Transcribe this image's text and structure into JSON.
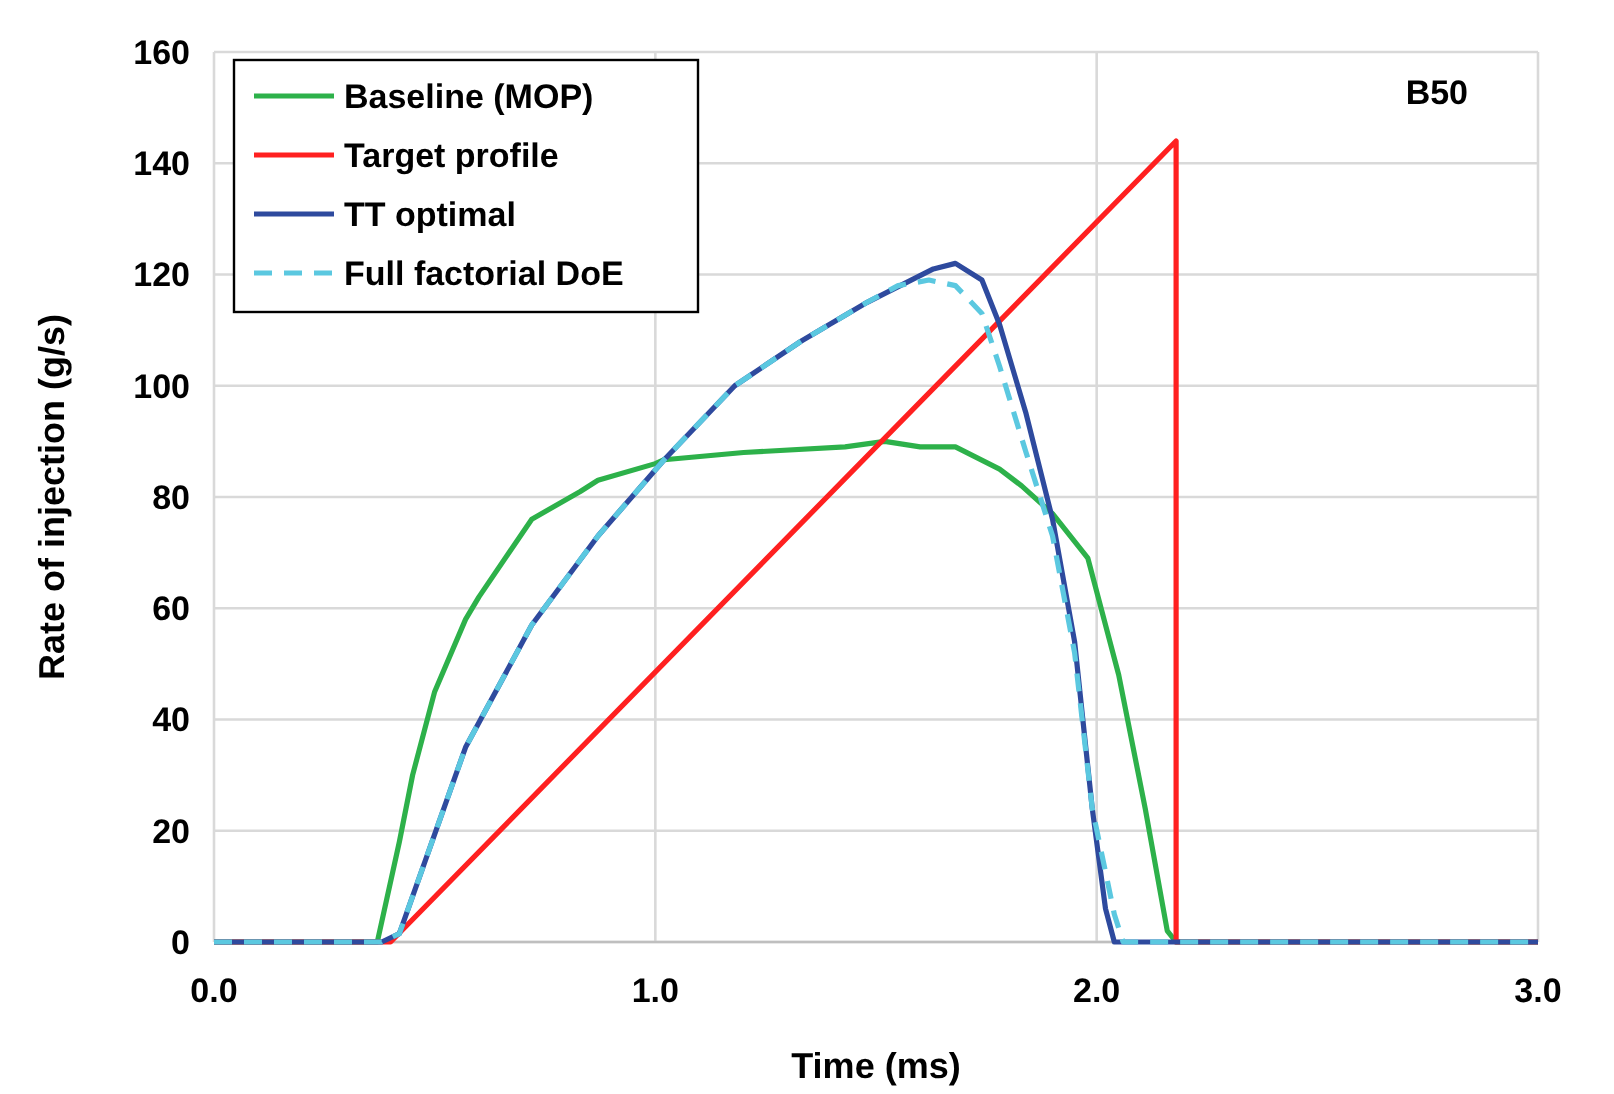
{
  "chart_data": {
    "type": "line",
    "xlabel": "Time (ms)",
    "ylabel": "Rate of injection (g/s)",
    "annotations": [
      "B50"
    ],
    "xlim": [
      0,
      3
    ],
    "ylim": [
      0,
      160
    ],
    "xticks": [
      {
        "value": 0,
        "label": "0.0"
      },
      {
        "value": 1,
        "label": "1.0"
      },
      {
        "value": 2,
        "label": "2.0"
      },
      {
        "value": 3,
        "label": "3.0"
      }
    ],
    "yticks": [
      0,
      20,
      40,
      60,
      80,
      100,
      120,
      140,
      160
    ],
    "grid": true,
    "legend": "top left",
    "series": [
      {
        "name": "Baseline (MOP)",
        "color": "#2db14a",
        "line_style": "solid",
        "x": [
          0,
          0.37,
          0.42,
          0.45,
          0.5,
          0.57,
          0.6,
          0.72,
          0.83,
          0.87,
          1.0,
          1.02,
          1.2,
          1.43,
          1.52,
          1.6,
          1.68,
          1.78,
          1.83,
          1.9,
          1.98,
          2.05,
          2.11,
          2.16,
          2.18,
          3.0
        ],
        "values": [
          0,
          0,
          18,
          30,
          45,
          58,
          62,
          76,
          81,
          83,
          86,
          86.7,
          88,
          89,
          90,
          89,
          89,
          85,
          82,
          77,
          69,
          48,
          24,
          2,
          0,
          0
        ]
      },
      {
        "name": "Target profile",
        "color": "#ff2020",
        "line_style": "solid",
        "x": [
          0,
          0.4,
          2.18,
          2.18,
          3.0
        ],
        "values": [
          0,
          0,
          144,
          0,
          0
        ]
      },
      {
        "name": "TT optimal",
        "color": "#2e4a9e",
        "line_style": "solid",
        "x": [
          0,
          0.38,
          0.42,
          0.57,
          0.72,
          0.87,
          1.02,
          1.18,
          1.33,
          1.48,
          1.63,
          1.68,
          1.74,
          1.78,
          1.84,
          1.9,
          1.95,
          1.99,
          2.02,
          2.04,
          3.0
        ],
        "values": [
          0,
          0,
          1.5,
          35,
          57,
          73,
          86.7,
          100,
          108,
          115,
          121,
          122,
          119,
          111,
          95,
          76,
          54,
          24,
          6,
          0,
          0
        ]
      },
      {
        "name": "Full factorial DoE",
        "color": "#5bc8e0",
        "line_style": "dashed",
        "x": [
          0,
          0.38,
          0.42,
          0.57,
          0.72,
          0.87,
          1.02,
          1.18,
          1.33,
          1.48,
          1.55,
          1.62,
          1.68,
          1.74,
          1.78,
          1.84,
          1.9,
          1.95,
          1.99,
          2.04,
          2.06,
          3.0
        ],
        "values": [
          0,
          0,
          1.5,
          35,
          57,
          73,
          86.7,
          100,
          108,
          115,
          118,
          119,
          118,
          113,
          103.5,
          88,
          73,
          52,
          24,
          5,
          0,
          0
        ]
      }
    ]
  }
}
